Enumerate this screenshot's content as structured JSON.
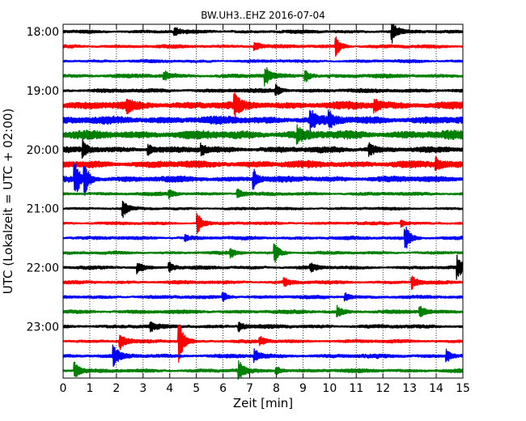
{
  "chart_data": {
    "type": "line",
    "title": "BW.UH3..EHZ 2016-07-04",
    "xlabel": "Zeit  [min]",
    "ylabel": "UTC (Lokalzeit = UTC + 02:00)",
    "xlim": [
      0,
      15
    ],
    "x_ticks": [
      "0",
      "1",
      "2",
      "3",
      "4",
      "5",
      "6",
      "7",
      "8",
      "9",
      "10",
      "11",
      "12",
      "13",
      "14",
      "15"
    ],
    "y_ticks": [
      "18:00",
      "19:00",
      "20:00",
      "21:00",
      "22:00",
      "23:00"
    ],
    "grid": "vertical dotted",
    "trace_interval_min": 15,
    "trace_colors": [
      "#000000",
      "#ff0000",
      "#0000ff",
      "#008000"
    ],
    "series": [
      {
        "start": "18:00",
        "amp": 0.25,
        "events": [
          [
            12.35,
            1.6
          ],
          [
            4.2,
            0.6
          ]
        ]
      },
      {
        "start": "18:15",
        "amp": 0.25,
        "events": [
          [
            10.25,
            1.3
          ],
          [
            7.2,
            0.7
          ]
        ]
      },
      {
        "start": "18:30",
        "amp": 0.22,
        "events": []
      },
      {
        "start": "18:45",
        "amp": 0.3,
        "events": [
          [
            7.6,
            1.3
          ],
          [
            9.1,
            0.9
          ],
          [
            3.8,
            0.6
          ]
        ]
      },
      {
        "start": "19:00",
        "amp": 0.3,
        "events": [
          [
            8.0,
            0.7
          ]
        ]
      },
      {
        "start": "19:15",
        "amp": 0.6,
        "events": [
          [
            6.45,
            1.4
          ],
          [
            2.4,
            0.8
          ],
          [
            11.7,
            0.8
          ]
        ]
      },
      {
        "start": "19:30",
        "amp": 0.6,
        "events": [
          [
            9.3,
            1.4
          ],
          [
            10.0,
            1.0
          ]
        ]
      },
      {
        "start": "19:45",
        "amp": 0.65,
        "events": [
          [
            8.8,
            1.0
          ]
        ]
      },
      {
        "start": "20:00",
        "amp": 0.45,
        "events": [
          [
            0.75,
            1.2
          ],
          [
            3.2,
            0.7
          ],
          [
            5.2,
            0.7
          ],
          [
            11.5,
            0.9
          ]
        ]
      },
      {
        "start": "20:15",
        "amp": 0.55,
        "events": [
          [
            14.0,
            0.9
          ]
        ]
      },
      {
        "start": "20:30",
        "amp": 0.45,
        "events": [
          [
            0.45,
            2.4
          ],
          [
            0.8,
            2.2
          ],
          [
            7.15,
            1.4
          ]
        ]
      },
      {
        "start": "20:45",
        "amp": 0.25,
        "events": [
          [
            6.55,
            0.8
          ],
          [
            4.0,
            0.5
          ]
        ]
      },
      {
        "start": "21:00",
        "amp": 0.2,
        "events": [
          [
            2.25,
            1.2
          ]
        ]
      },
      {
        "start": "21:15",
        "amp": 0.22,
        "events": [
          [
            5.05,
            1.6
          ],
          [
            12.7,
            0.5
          ]
        ]
      },
      {
        "start": "21:30",
        "amp": 0.25,
        "events": [
          [
            12.85,
            1.8
          ],
          [
            4.6,
            0.5
          ]
        ]
      },
      {
        "start": "21:45",
        "amp": 0.22,
        "events": [
          [
            7.95,
            1.3
          ],
          [
            6.3,
            0.6
          ]
        ]
      },
      {
        "start": "22:00",
        "amp": 0.25,
        "events": [
          [
            14.8,
            1.7
          ],
          [
            2.8,
            0.9
          ],
          [
            4.0,
            0.8
          ],
          [
            9.3,
            0.6
          ]
        ]
      },
      {
        "start": "22:15",
        "amp": 0.25,
        "events": [
          [
            13.1,
            1.0
          ],
          [
            8.3,
            0.6
          ]
        ]
      },
      {
        "start": "22:30",
        "amp": 0.25,
        "events": [
          [
            6.0,
            0.7
          ],
          [
            10.6,
            0.6
          ]
        ]
      },
      {
        "start": "22:45",
        "amp": 0.28,
        "events": [
          [
            10.3,
            0.8
          ],
          [
            13.4,
            0.8
          ]
        ]
      },
      {
        "start": "23:00",
        "amp": 0.28,
        "events": [
          [
            6.6,
            0.8
          ],
          [
            3.3,
            0.6
          ]
        ]
      },
      {
        "start": "23:15",
        "amp": 0.25,
        "events": [
          [
            4.35,
            3.0
          ],
          [
            2.15,
            1.3
          ],
          [
            7.4,
            0.6
          ]
        ]
      },
      {
        "start": "23:30",
        "amp": 0.3,
        "events": [
          [
            1.9,
            1.5
          ],
          [
            7.2,
            0.9
          ],
          [
            14.4,
            0.9
          ]
        ]
      },
      {
        "start": "23:45",
        "amp": 0.28,
        "events": [
          [
            0.45,
            1.2
          ],
          [
            6.6,
            1.5
          ],
          [
            8.0,
            0.6
          ]
        ]
      }
    ]
  }
}
